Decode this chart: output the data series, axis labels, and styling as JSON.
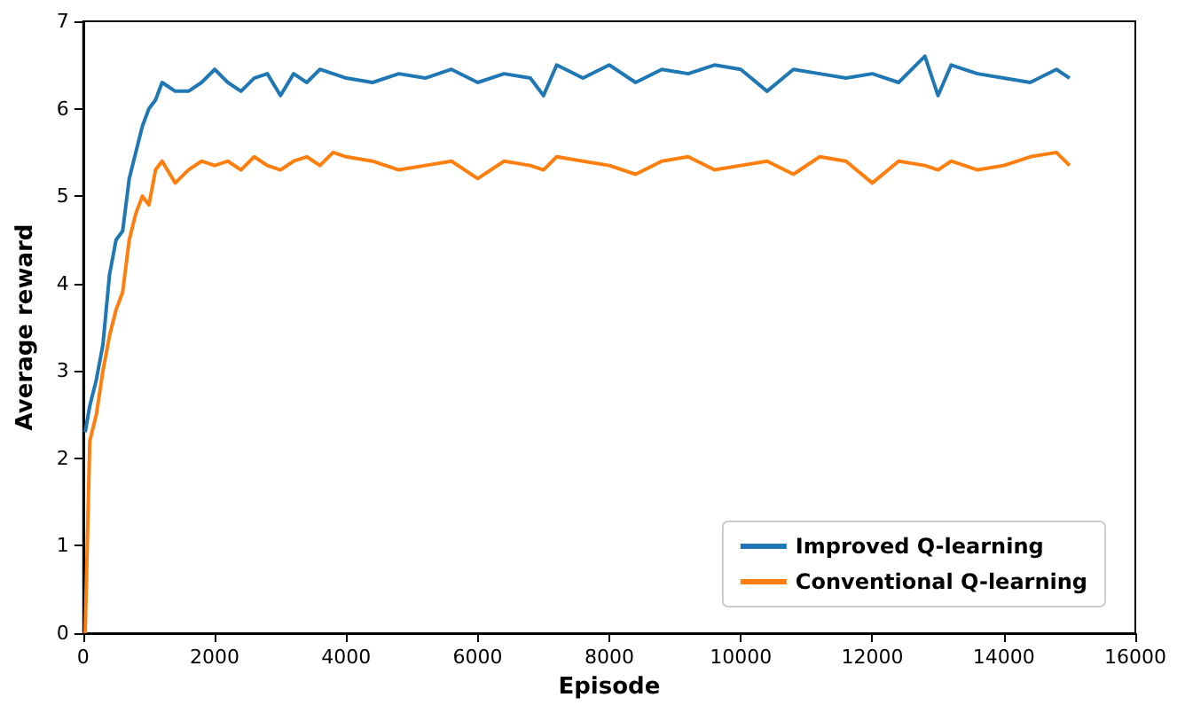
{
  "chart_data": {
    "type": "line",
    "xlabel": "Episode",
    "ylabel": "Average reward",
    "x": [
      30,
      100,
      200,
      300,
      400,
      500,
      600,
      700,
      800,
      900,
      1000,
      1100,
      1200,
      1400,
      1600,
      1800,
      2000,
      2200,
      2400,
      2600,
      2800,
      3000,
      3200,
      3400,
      3600,
      3800,
      4000,
      4400,
      4800,
      5200,
      5600,
      6000,
      6400,
      6800,
      7000,
      7200,
      7600,
      8000,
      8400,
      8800,
      9200,
      9600,
      10000,
      10400,
      10800,
      11200,
      11600,
      12000,
      12400,
      12800,
      13000,
      13200,
      13600,
      14000,
      14400,
      14800,
      15000
    ],
    "series": [
      {
        "name": "Improved Q-learning",
        "color": "#1f77b4",
        "values": [
          2.3,
          2.6,
          2.9,
          3.3,
          4.1,
          4.5,
          4.6,
          5.2,
          5.5,
          5.8,
          6.0,
          6.1,
          6.3,
          6.2,
          6.2,
          6.3,
          6.45,
          6.3,
          6.2,
          6.35,
          6.4,
          6.15,
          6.4,
          6.3,
          6.45,
          6.4,
          6.35,
          6.3,
          6.4,
          6.35,
          6.45,
          6.3,
          6.4,
          6.35,
          6.15,
          6.5,
          6.35,
          6.5,
          6.3,
          6.45,
          6.4,
          6.5,
          6.45,
          6.2,
          6.45,
          6.4,
          6.35,
          6.4,
          6.3,
          6.6,
          6.15,
          6.5,
          6.4,
          6.35,
          6.3,
          6.45,
          6.35
        ]
      },
      {
        "name": "Conventional Q-learning",
        "color": "#ff7f0e",
        "values": [
          0,
          2.2,
          2.5,
          3.0,
          3.4,
          3.7,
          3.9,
          4.5,
          4.8,
          5.0,
          4.9,
          5.3,
          5.4,
          5.15,
          5.3,
          5.4,
          5.35,
          5.4,
          5.3,
          5.45,
          5.35,
          5.3,
          5.4,
          5.45,
          5.35,
          5.5,
          5.45,
          5.4,
          5.3,
          5.35,
          5.4,
          5.2,
          5.4,
          5.35,
          5.3,
          5.45,
          5.4,
          5.35,
          5.25,
          5.4,
          5.45,
          5.3,
          5.35,
          5.4,
          5.25,
          5.45,
          5.4,
          5.15,
          5.4,
          5.35,
          5.3,
          5.4,
          5.3,
          5.35,
          5.45,
          5.5,
          5.35
        ]
      }
    ],
    "xlim": [
      0,
      16000
    ],
    "xticks": [
      0,
      2000,
      4000,
      6000,
      8000,
      10000,
      12000,
      14000,
      16000
    ],
    "ylim": [
      0,
      7
    ],
    "yticks": [
      0,
      1,
      2,
      3,
      4,
      5,
      6,
      7
    ],
    "legend": "bottom right",
    "grid": false,
    "marker": "none",
    "line_style": "solid"
  }
}
